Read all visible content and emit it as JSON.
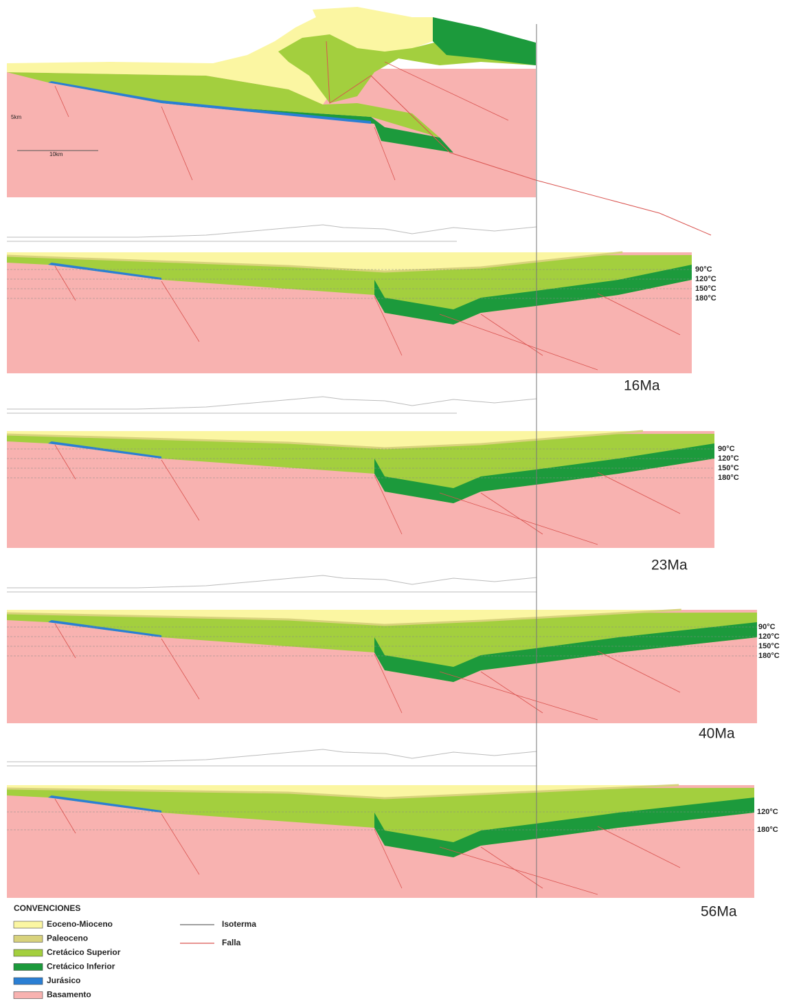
{
  "scale": {
    "vertical": "5km",
    "horizontal": "10km"
  },
  "sections": [
    {
      "age": "16Ma",
      "isotherms": [
        "90°C",
        "120°C",
        "150°C",
        "180°C"
      ]
    },
    {
      "age": "23Ma",
      "isotherms": [
        "90°C",
        "120°C",
        "150°C",
        "180°C"
      ]
    },
    {
      "age": "40Ma",
      "isotherms": [
        "90°C",
        "120°C",
        "150°C",
        "180°C"
      ]
    },
    {
      "age": "56Ma",
      "isotherms": [
        "120°C",
        "180°C"
      ]
    }
  ],
  "legend": {
    "title": "CONVENCIONES",
    "units": [
      "Eoceno-Mioceno",
      "Paleoceno",
      "Cretácico Superior",
      "Cretácico Inferior",
      "Jurásico",
      "Basamento"
    ],
    "lines": [
      "Isoterma",
      "Falla"
    ]
  }
}
